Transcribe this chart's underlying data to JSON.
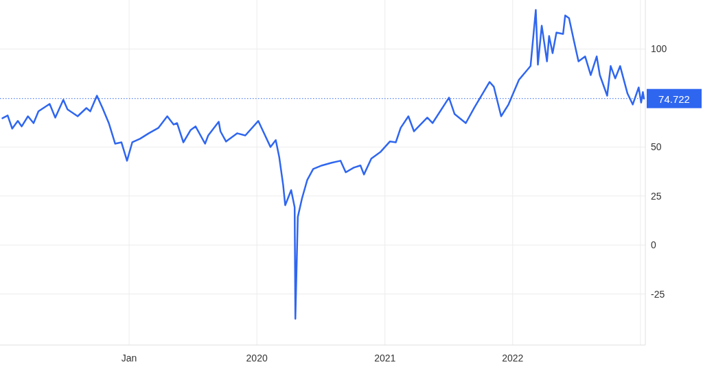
{
  "chart_data": {
    "type": "line",
    "x": [
      "2018-01-04",
      "2018-01-19",
      "2018-02-01",
      "2018-02-17",
      "2018-02-28",
      "2018-03-18",
      "2018-04-03",
      "2018-04-17",
      "2018-05-19",
      "2018-06-04",
      "2018-06-27",
      "2018-07-09",
      "2018-08-07",
      "2018-09-01",
      "2018-09-12",
      "2018-10-01",
      "2018-10-17",
      "2018-11-04",
      "2018-11-22",
      "2018-12-10",
      "2018-12-26",
      "2019-01-10",
      "2019-02-01",
      "2019-02-26",
      "2019-03-26",
      "2019-04-20",
      "2019-05-08",
      "2019-05-18",
      "2019-06-05",
      "2019-06-26",
      "2019-07-10",
      "2019-08-06",
      "2019-08-15",
      "2019-09-14",
      "2019-09-19",
      "2019-10-05",
      "2019-11-06",
      "2019-11-29",
      "2020-01-05",
      "2020-01-19",
      "2020-02-09",
      "2020-02-24",
      "2020-03-05",
      "2020-03-16",
      "2020-03-22",
      "2020-04-08",
      "2020-04-18",
      "2020-04-20",
      "2020-04-27",
      "2020-05-09",
      "2020-05-24",
      "2020-06-10",
      "2020-07-05",
      "2020-08-02",
      "2020-08-27",
      "2020-09-11",
      "2020-10-04",
      "2020-10-23",
      "2020-11-02",
      "2020-11-23",
      "2020-12-20",
      "2021-01-15",
      "2021-02-01",
      "2021-02-15",
      "2021-03-09",
      "2021-03-25",
      "2021-05-02",
      "2021-05-17",
      "2021-07-03",
      "2021-07-19",
      "2021-08-20",
      "2021-09-14",
      "2021-10-27",
      "2021-11-08",
      "2021-11-29",
      "2021-12-20",
      "2022-01-19",
      "2022-02-21",
      "2022-03-08",
      "2022-03-14",
      "2022-03-25",
      "2022-04-09",
      "2022-04-15",
      "2022-04-25",
      "2022-05-06",
      "2022-05-25",
      "2022-05-31",
      "2022-06-11",
      "2022-06-25",
      "2022-07-08",
      "2022-07-27",
      "2022-08-12",
      "2022-08-29",
      "2022-09-07",
      "2022-09-28",
      "2022-10-08",
      "2022-10-21",
      "2022-11-04",
      "2022-11-25",
      "2022-12-10",
      "2022-12-27",
      "2023-01-03",
      "2023-01-08",
      "2023-01-11"
    ],
    "series": [
      {
        "color": "#2f66f0",
        "values": [
          64.7,
          66.1,
          59.4,
          63.3,
          60.5,
          65.7,
          62.2,
          68.2,
          72.0,
          65.0,
          74.1,
          69.2,
          65.7,
          69.9,
          68.2,
          76.2,
          69.9,
          62.2,
          51.7,
          52.4,
          43.0,
          52.4,
          54.2,
          57.0,
          59.8,
          65.7,
          61.5,
          62.2,
          52.4,
          58.7,
          60.5,
          51.7,
          55.9,
          62.9,
          58.0,
          52.8,
          57.0,
          55.9,
          63.3,
          58.0,
          50.0,
          53.5,
          44.8,
          30.8,
          20.3,
          28.0,
          19.2,
          -37.6,
          14.3,
          23.8,
          33.2,
          38.8,
          40.6,
          42.0,
          43.0,
          37.1,
          39.5,
          40.6,
          36.0,
          44.1,
          47.6,
          52.8,
          52.4,
          59.8,
          65.7,
          58.0,
          65.0,
          62.2,
          75.2,
          66.8,
          62.2,
          70.3,
          83.2,
          80.8,
          65.7,
          71.7,
          84.3,
          91.3,
          119.9,
          92.0,
          111.9,
          93.7,
          106.6,
          97.9,
          108.4,
          107.7,
          117.1,
          115.7,
          104.2,
          93.7,
          96.2,
          86.7,
          96.2,
          86.7,
          76.2,
          91.3,
          85.0,
          91.3,
          77.3,
          71.7,
          80.4,
          72.7,
          78.0,
          74.7
        ]
      }
    ],
    "xlim": [
      "2018-01-01",
      "2023-01-15"
    ],
    "xticks": [
      {
        "value": "2019-01-01",
        "label": "Jan"
      },
      {
        "value": "2020-01-01",
        "label": "2020"
      },
      {
        "value": "2021-01-01",
        "label": "2021"
      },
      {
        "value": "2022-01-01",
        "label": "2022"
      },
      {
        "value": "2023-01-01",
        "label": null
      }
    ],
    "ylim": [
      -51,
      125
    ],
    "yticks": [
      -25,
      0,
      25,
      50,
      100
    ],
    "ref_lines": [
      {
        "axis": "y",
        "value": 74.722,
        "label": "74.722",
        "color": "#2f66f0",
        "line_style": "dotted"
      }
    ],
    "grid": true,
    "marker": "none",
    "line_style": "solid"
  }
}
